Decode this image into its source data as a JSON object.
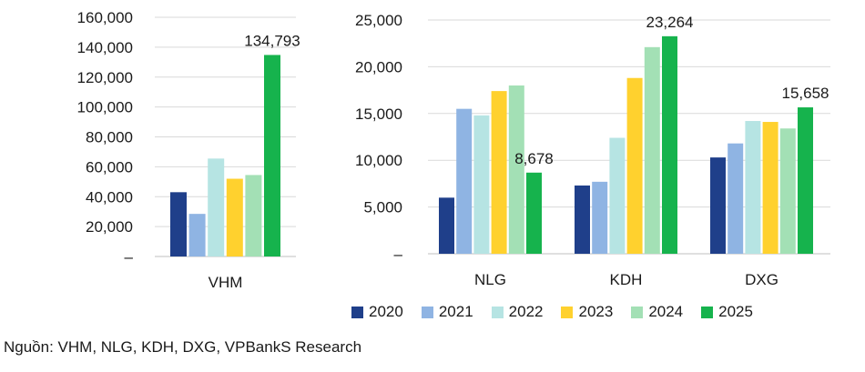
{
  "colors": {
    "2020": "#1f3f8a",
    "2021": "#8fb4e3",
    "2022": "#b6e4e3",
    "2023": "#ffd12e",
    "2024": "#a3e0b5",
    "2025": "#16b34d"
  },
  "legend": [
    "2020",
    "2021",
    "2022",
    "2023",
    "2024",
    "2025"
  ],
  "source": "Nguồn: VHM, NLG, KDH, DXG, VPBankS Research",
  "chart_data": [
    {
      "type": "bar",
      "categories": [
        "VHM"
      ],
      "yticks": [
        "–",
        "20,000",
        "40,000",
        "60,000",
        "80,000",
        "100,000",
        "120,000",
        "140,000",
        "160,000"
      ],
      "ylim": [
        0,
        160000
      ],
      "grid": true,
      "series": [
        {
          "name": "2020",
          "values": [
            43000
          ]
        },
        {
          "name": "2021",
          "values": [
            28500
          ]
        },
        {
          "name": "2022",
          "values": [
            65500
          ]
        },
        {
          "name": "2023",
          "values": [
            52000
          ]
        },
        {
          "name": "2024",
          "values": [
            54500
          ]
        },
        {
          "name": "2025",
          "values": [
            134793
          ]
        }
      ],
      "data_labels": [
        {
          "series": "2025",
          "category": "VHM",
          "text": "134,793"
        }
      ]
    },
    {
      "type": "bar",
      "categories": [
        "NLG",
        "KDH",
        "DXG"
      ],
      "yticks": [
        "–",
        "5,000",
        "10,000",
        "15,000",
        "20,000",
        "25,000"
      ],
      "ylim": [
        0,
        25000
      ],
      "grid": true,
      "legend_position": "bottom",
      "series": [
        {
          "name": "2020",
          "values": [
            6000,
            7300,
            10300
          ]
        },
        {
          "name": "2021",
          "values": [
            15500,
            7700,
            11800
          ]
        },
        {
          "name": "2022",
          "values": [
            14800,
            12400,
            14200
          ]
        },
        {
          "name": "2023",
          "values": [
            17400,
            18800,
            14100
          ]
        },
        {
          "name": "2024",
          "values": [
            18000,
            22100,
            13400
          ]
        },
        {
          "name": "2025",
          "values": [
            8678,
            23264,
            15658
          ]
        }
      ],
      "data_labels": [
        {
          "series": "2025",
          "category": "NLG",
          "text": "8,678"
        },
        {
          "series": "2025",
          "category": "KDH",
          "text": "23,264"
        },
        {
          "series": "2025",
          "category": "DXG",
          "text": "15,658"
        }
      ]
    }
  ]
}
